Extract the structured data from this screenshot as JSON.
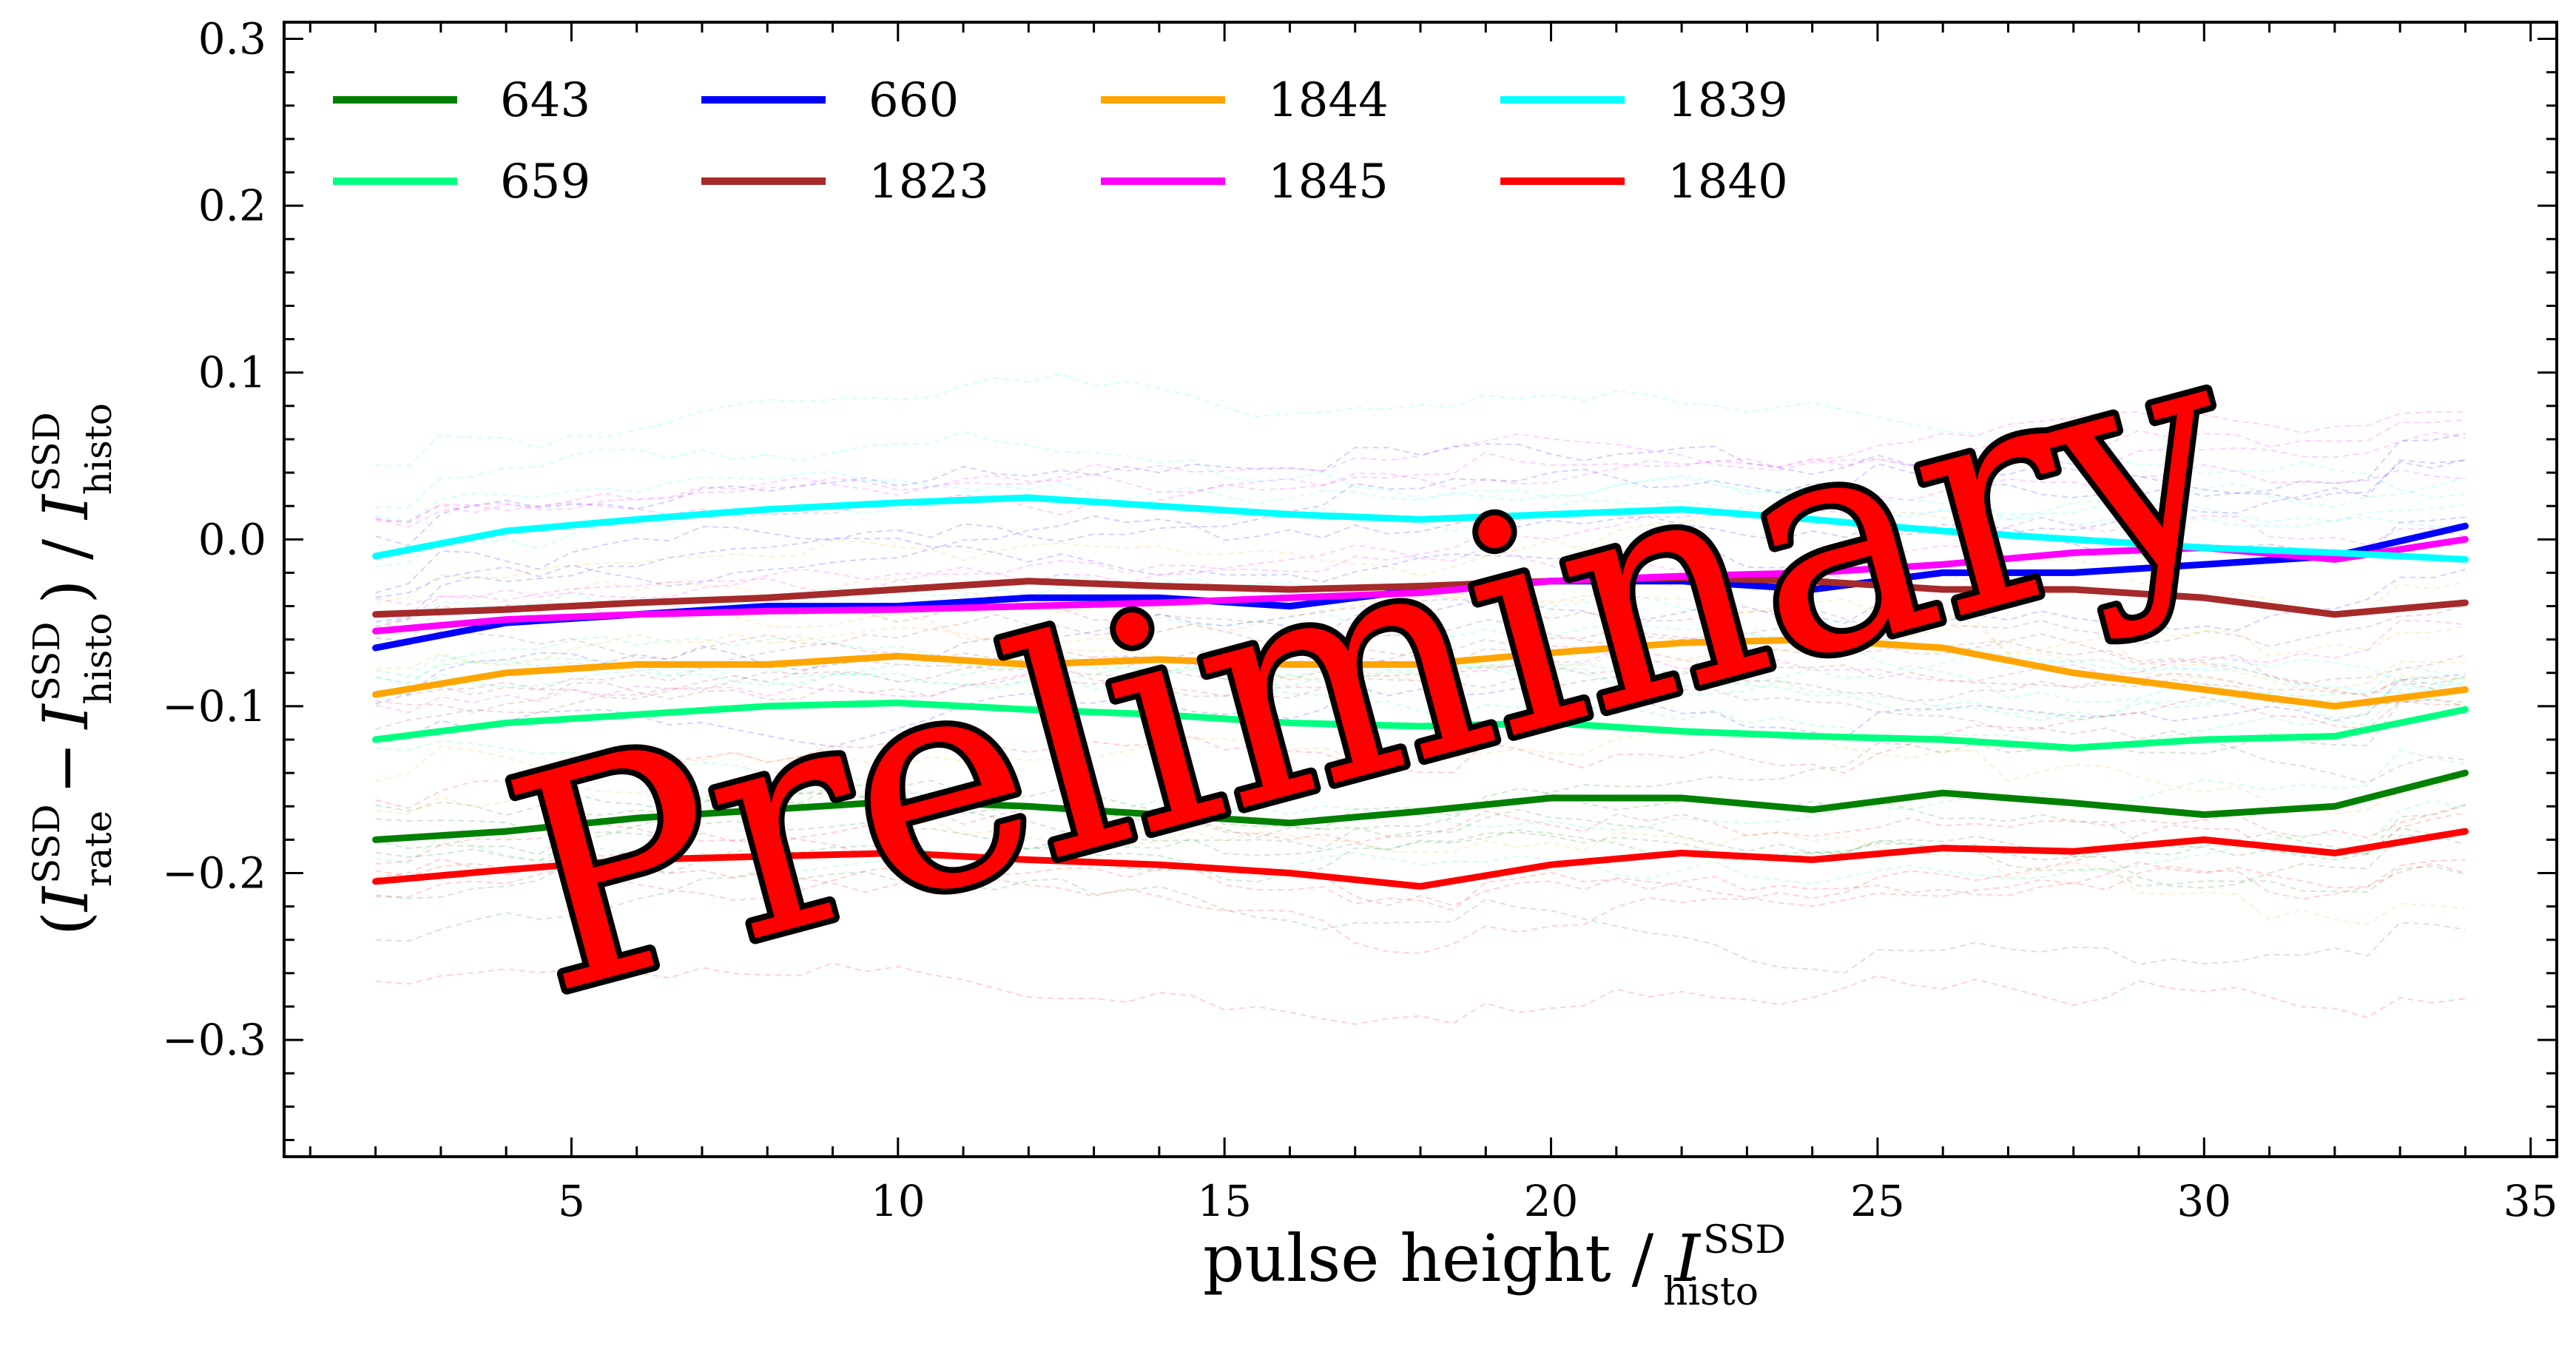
{
  "watermark": "Preliminary",
  "chart_data": {
    "type": "line",
    "title": "",
    "xlabel": {
      "prefix": "pulse height / ",
      "symbol": "I",
      "superscript": "SSD",
      "subscript": "histo"
    },
    "ylabel": {
      "open": "(",
      "symbol_a": "I",
      "sup_a": "SSD",
      "sub_a": "rate",
      "minus": "−",
      "symbol_b": "I",
      "sup_b": "SSD",
      "sub_b": "histo",
      "close": ") / ",
      "symbol_c": "I",
      "sup_c": "SSD",
      "sub_c": "histo"
    },
    "xlim": [
      0.6,
      35.4
    ],
    "ylim": [
      -0.37,
      0.31
    ],
    "xticks": [
      5,
      10,
      15,
      20,
      25,
      30,
      35
    ],
    "xtick_labels": [
      "5",
      "10",
      "15",
      "20",
      "25",
      "30",
      "35"
    ],
    "yticks": [
      -0.3,
      -0.2,
      -0.1,
      0.0,
      0.1,
      0.2,
      0.3
    ],
    "ytick_labels": [
      "−0.3",
      "−0.2",
      "−0.1",
      "0.0",
      "0.1",
      "0.2",
      "0.3"
    ],
    "legend_position": "top-left",
    "legend_columns": 4,
    "grid": false,
    "x": [
      2,
      4,
      6,
      8,
      10,
      12,
      14,
      16,
      18,
      20,
      22,
      24,
      26,
      28,
      30,
      32,
      34
    ],
    "series": [
      {
        "name": "643",
        "color": "#008000",
        "values": [
          -0.18,
          -0.175,
          -0.167,
          -0.162,
          -0.157,
          -0.16,
          -0.165,
          -0.17,
          -0.163,
          -0.155,
          -0.155,
          -0.162,
          -0.152,
          -0.158,
          -0.165,
          -0.16,
          -0.14
        ]
      },
      {
        "name": "659",
        "color": "#00ff7f",
        "values": [
          -0.12,
          -0.11,
          -0.105,
          -0.1,
          -0.098,
          -0.102,
          -0.105,
          -0.11,
          -0.112,
          -0.11,
          -0.115,
          -0.118,
          -0.12,
          -0.125,
          -0.12,
          -0.118,
          -0.102
        ]
      },
      {
        "name": "660",
        "color": "#0000ff",
        "values": [
          -0.065,
          -0.05,
          -0.045,
          -0.04,
          -0.04,
          -0.035,
          -0.035,
          -0.04,
          -0.03,
          -0.025,
          -0.025,
          -0.03,
          -0.02,
          -0.02,
          -0.015,
          -0.01,
          0.008
        ]
      },
      {
        "name": "1823",
        "color": "#a52a2a",
        "values": [
          -0.045,
          -0.042,
          -0.038,
          -0.035,
          -0.03,
          -0.025,
          -0.028,
          -0.03,
          -0.028,
          -0.025,
          -0.023,
          -0.025,
          -0.03,
          -0.03,
          -0.035,
          -0.045,
          -0.038
        ]
      },
      {
        "name": "1844",
        "color": "#ffa500",
        "values": [
          -0.093,
          -0.08,
          -0.075,
          -0.075,
          -0.07,
          -0.075,
          -0.072,
          -0.075,
          -0.075,
          -0.068,
          -0.062,
          -0.06,
          -0.065,
          -0.08,
          -0.09,
          -0.1,
          -0.09
        ]
      },
      {
        "name": "1845",
        "color": "#ff00ff",
        "values": [
          -0.055,
          -0.048,
          -0.045,
          -0.043,
          -0.042,
          -0.04,
          -0.038,
          -0.035,
          -0.032,
          -0.025,
          -0.022,
          -0.02,
          -0.015,
          -0.008,
          -0.005,
          -0.012,
          0.0
        ]
      },
      {
        "name": "1839",
        "color": "#00ffff",
        "values": [
          -0.01,
          0.005,
          0.012,
          0.018,
          0.022,
          0.025,
          0.02,
          0.015,
          0.012,
          0.015,
          0.018,
          0.012,
          0.005,
          0.0,
          -0.005,
          -0.008,
          -0.012
        ]
      },
      {
        "name": "1840",
        "color": "#ff0000",
        "values": [
          -0.205,
          -0.198,
          -0.192,
          -0.19,
          -0.188,
          -0.192,
          -0.195,
          -0.2,
          -0.208,
          -0.195,
          -0.188,
          -0.192,
          -0.185,
          -0.187,
          -0.18,
          -0.188,
          -0.175
        ]
      }
    ]
  }
}
